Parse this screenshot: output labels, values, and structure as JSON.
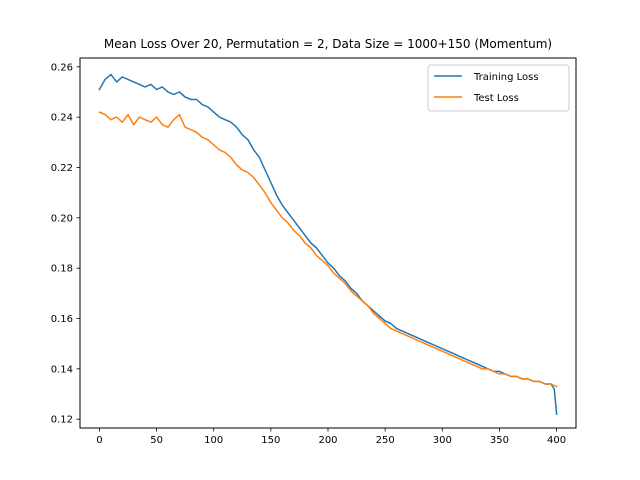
{
  "chart_data": {
    "type": "line",
    "title": "Mean Loss Over 20, Permutation = 2, Data Size = 1000+150 (Momentum)",
    "xlabel": "",
    "ylabel": "",
    "xlim": [
      -17,
      417
    ],
    "ylim": [
      0.1165,
      0.2635
    ],
    "xticks": [
      0,
      50,
      100,
      150,
      200,
      250,
      300,
      350,
      400
    ],
    "xtick_labels": [
      "0",
      "50",
      "100",
      "150",
      "200",
      "250",
      "300",
      "350",
      "400"
    ],
    "yticks": [
      0.12,
      0.14,
      0.16,
      0.18,
      0.2,
      0.22,
      0.24,
      0.26
    ],
    "ytick_labels": [
      "0.12",
      "0.14",
      "0.16",
      "0.18",
      "0.20",
      "0.22",
      "0.24",
      "0.26"
    ],
    "grid": false,
    "legend_position": "top-right",
    "series": [
      {
        "name": "Training Loss",
        "color": "#1f77b4",
        "x": [
          0,
          5,
          10,
          15,
          20,
          25,
          30,
          35,
          40,
          45,
          50,
          55,
          60,
          65,
          70,
          75,
          80,
          85,
          90,
          95,
          100,
          105,
          110,
          115,
          120,
          125,
          130,
          135,
          140,
          145,
          150,
          155,
          160,
          165,
          170,
          175,
          180,
          185,
          190,
          195,
          200,
          205,
          210,
          215,
          220,
          225,
          230,
          235,
          240,
          245,
          250,
          255,
          260,
          265,
          270,
          275,
          280,
          285,
          290,
          295,
          300,
          305,
          310,
          315,
          320,
          325,
          330,
          335,
          340,
          345,
          350,
          355,
          360,
          365,
          370,
          375,
          380,
          385,
          390,
          395,
          398,
          400
        ],
        "values": [
          0.251,
          0.255,
          0.257,
          0.254,
          0.256,
          0.255,
          0.254,
          0.253,
          0.252,
          0.253,
          0.251,
          0.252,
          0.25,
          0.249,
          0.25,
          0.248,
          0.247,
          0.247,
          0.245,
          0.244,
          0.242,
          0.24,
          0.239,
          0.238,
          0.236,
          0.233,
          0.231,
          0.227,
          0.224,
          0.219,
          0.214,
          0.209,
          0.205,
          0.202,
          0.199,
          0.196,
          0.193,
          0.19,
          0.188,
          0.185,
          0.182,
          0.18,
          0.177,
          0.175,
          0.172,
          0.17,
          0.167,
          0.165,
          0.163,
          0.161,
          0.159,
          0.158,
          0.156,
          0.155,
          0.154,
          0.153,
          0.152,
          0.151,
          0.15,
          0.149,
          0.148,
          0.147,
          0.146,
          0.145,
          0.144,
          0.143,
          0.142,
          0.141,
          0.14,
          0.139,
          0.139,
          0.138,
          0.137,
          0.137,
          0.136,
          0.136,
          0.135,
          0.135,
          0.134,
          0.134,
          0.132,
          0.122
        ]
      },
      {
        "name": "Test Loss",
        "color": "#ff7f0e",
        "x": [
          0,
          5,
          10,
          15,
          20,
          25,
          30,
          35,
          40,
          45,
          50,
          55,
          60,
          65,
          70,
          75,
          80,
          85,
          90,
          95,
          100,
          105,
          110,
          115,
          120,
          125,
          130,
          135,
          140,
          145,
          150,
          155,
          160,
          165,
          170,
          175,
          180,
          185,
          190,
          195,
          200,
          205,
          210,
          215,
          220,
          225,
          230,
          235,
          240,
          245,
          250,
          255,
          260,
          265,
          270,
          275,
          280,
          285,
          290,
          295,
          300,
          305,
          310,
          315,
          320,
          325,
          330,
          335,
          340,
          345,
          350,
          355,
          360,
          365,
          370,
          375,
          380,
          385,
          390,
          395,
          400
        ],
        "values": [
          0.242,
          0.241,
          0.239,
          0.24,
          0.238,
          0.241,
          0.237,
          0.24,
          0.239,
          0.238,
          0.24,
          0.237,
          0.236,
          0.239,
          0.241,
          0.236,
          0.235,
          0.234,
          0.232,
          0.231,
          0.229,
          0.227,
          0.226,
          0.224,
          0.221,
          0.219,
          0.218,
          0.216,
          0.213,
          0.21,
          0.206,
          0.203,
          0.2,
          0.198,
          0.195,
          0.193,
          0.19,
          0.188,
          0.185,
          0.183,
          0.181,
          0.178,
          0.176,
          0.174,
          0.171,
          0.169,
          0.167,
          0.165,
          0.162,
          0.16,
          0.158,
          0.156,
          0.155,
          0.154,
          0.153,
          0.152,
          0.151,
          0.15,
          0.149,
          0.148,
          0.147,
          0.146,
          0.145,
          0.144,
          0.143,
          0.142,
          0.141,
          0.14,
          0.14,
          0.139,
          0.138,
          0.138,
          0.137,
          0.137,
          0.136,
          0.136,
          0.135,
          0.135,
          0.134,
          0.134,
          0.133
        ]
      }
    ]
  }
}
